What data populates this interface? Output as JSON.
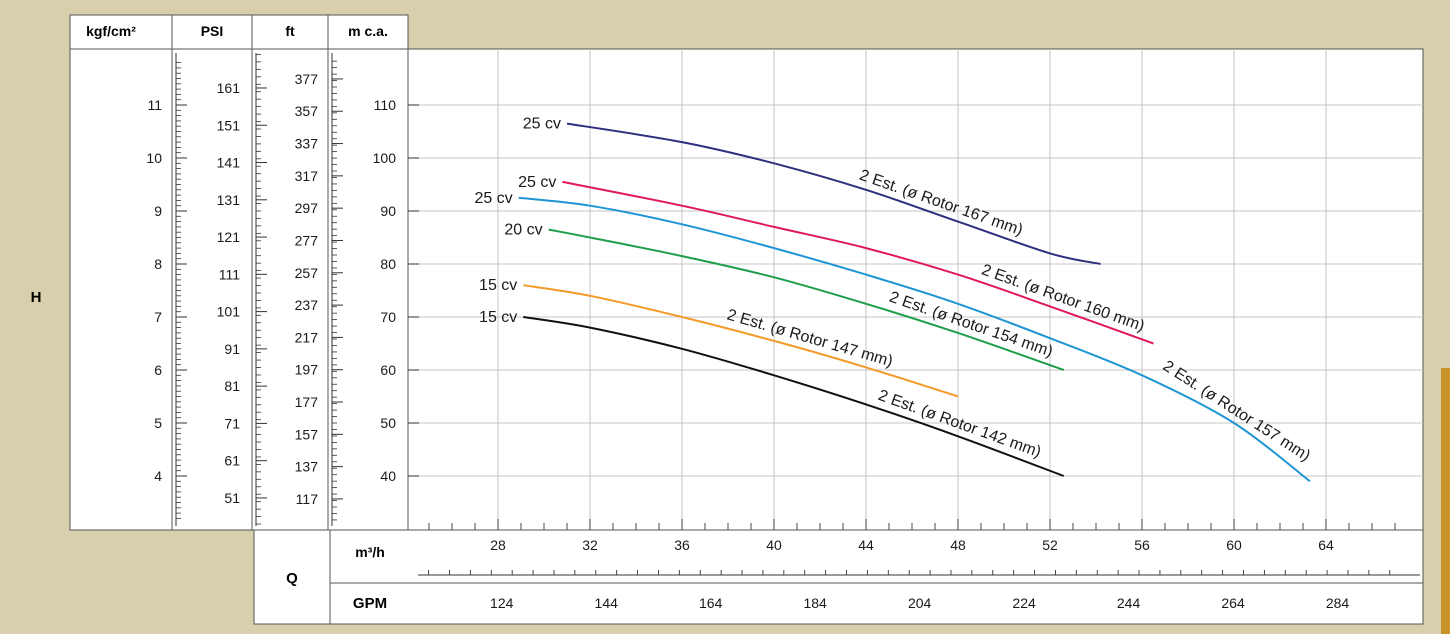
{
  "chart_data": {
    "type": "line",
    "colors": {
      "background": "#d8cfae",
      "panel": "#ffffff",
      "grid": "#c6c6c6",
      "ink": "#1a1a1a",
      "accent_tab": "#c8942a"
    },
    "left_label": "H",
    "bottom_label": "Q",
    "y_scales": [
      {
        "header": "kgf/cm²",
        "ticks": [
          4,
          5,
          6,
          7,
          8,
          9,
          10,
          11
        ]
      },
      {
        "header": "PSI",
        "ticks": [
          51,
          61,
          71,
          81,
          91,
          101,
          111,
          121,
          131,
          141,
          151,
          161
        ]
      },
      {
        "header": "ft",
        "ticks": [
          117,
          137,
          157,
          177,
          197,
          217,
          237,
          257,
          277,
          297,
          317,
          337,
          357,
          377
        ]
      },
      {
        "header": "m c.a.",
        "ticks": [
          40,
          50,
          60,
          70,
          80,
          90,
          100,
          110
        ]
      }
    ],
    "x_primary": {
      "label": "m³/h",
      "ticks": [
        28,
        32,
        36,
        40,
        44,
        48,
        52,
        56,
        60,
        64
      ]
    },
    "x_secondary": {
      "label": "GPM",
      "ticks": [
        124,
        144,
        164,
        184,
        204,
        224,
        244,
        264,
        284
      ]
    },
    "xlim": [
      24.3,
      67.5
    ],
    "ylim": [
      30,
      120
    ],
    "grid": true,
    "series": [
      {
        "power": "25 cv",
        "name": "2 Est. (ø Rotor 167 mm)",
        "color": "#2e2f7e",
        "x": [
          31,
          36,
          40,
          44,
          48,
          52,
          54.2
        ],
        "y": [
          106.5,
          103,
          99,
          94,
          88,
          82,
          80
        ]
      },
      {
        "power": "25 cv",
        "name": "2 Est. (ø Rotor 160 mm)",
        "color": "#e0185f",
        "x": [
          30.8,
          36,
          40,
          44,
          48,
          52,
          56.5
        ],
        "y": [
          95.5,
          91,
          87,
          83,
          78,
          72,
          65
        ]
      },
      {
        "power": "25 cv",
        "name": "2 Est. (ø Rotor 157 mm)",
        "color": "#1e95d4",
        "x": [
          28.9,
          32,
          36,
          40,
          44,
          48,
          52,
          56,
          60,
          63.3
        ],
        "y": [
          92.5,
          91,
          87.5,
          83,
          78,
          72.5,
          66,
          59,
          50,
          39
        ]
      },
      {
        "power": "20 cv",
        "name": "2 Est. (ø Rotor 154 mm)",
        "color": "#1f9e4a",
        "x": [
          30.2,
          32,
          36,
          40,
          44,
          48,
          52.6
        ],
        "y": [
          86.5,
          85,
          81.5,
          77.5,
          72.5,
          67,
          60
        ]
      },
      {
        "power": "15 cv",
        "name": "2 Est. (ø Rotor 147 mm)",
        "color": "#f49a28",
        "x": [
          29.1,
          32,
          36,
          40,
          44,
          48
        ],
        "y": [
          76,
          74,
          70,
          65.5,
          60.5,
          55
        ]
      },
      {
        "power": "15 cv",
        "name": "2 Est. (ø Rotor 142 mm)",
        "color": "#111111",
        "x": [
          29.1,
          32,
          36,
          40,
          44,
          48,
          52.6
        ],
        "y": [
          70,
          68,
          64,
          59,
          53.5,
          47.5,
          40
        ]
      }
    ]
  }
}
